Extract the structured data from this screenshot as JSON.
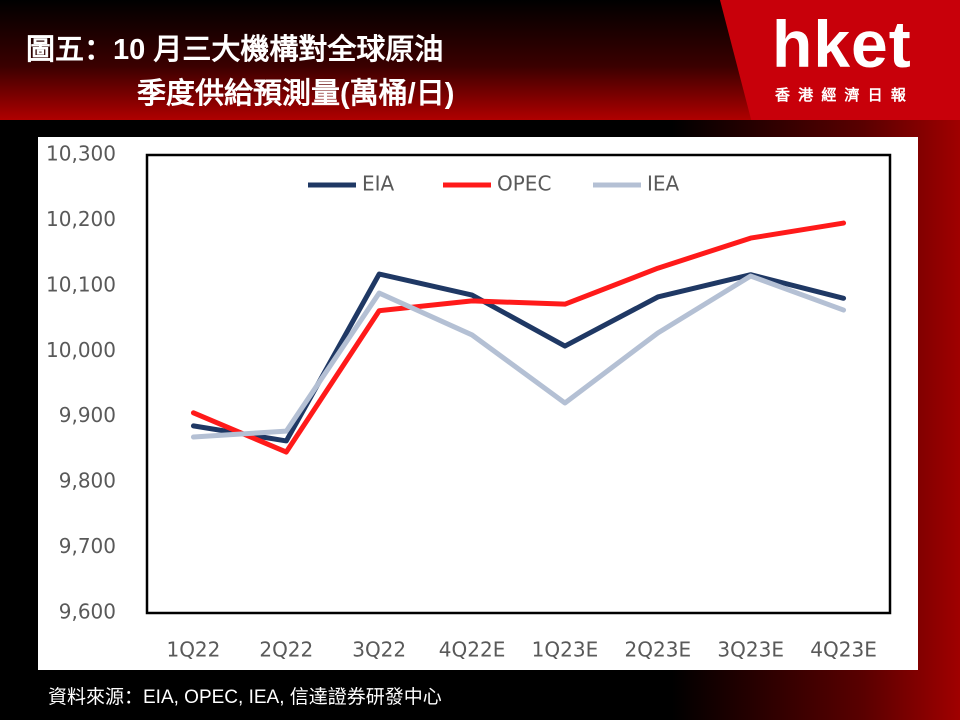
{
  "chart_data": {
    "type": "line",
    "title": "圖五：10 月三大機構對全球原油",
    "subtitle": "季度供給預測量(萬桶/日)",
    "source": "資料來源：EIA, OPEC, IEA, 信達證券研發中心",
    "categories": [
      "1Q22",
      "2Q22",
      "3Q22",
      "4Q22E",
      "1Q23E",
      "2Q23E",
      "3Q23E",
      "4Q23E"
    ],
    "series": [
      {
        "name": "EIA",
        "color": "#1f3864",
        "values": [
          9886,
          9863,
          10118,
          10086,
          10008,
          10083,
          10117,
          10081
        ]
      },
      {
        "name": "OPEC",
        "color": "#ff1a1a",
        "values": [
          9906,
          9846,
          10062,
          10077,
          10072,
          10127,
          10173,
          10196
        ]
      },
      {
        "name": "IEA",
        "color": "#b4c0d4",
        "values": [
          9869,
          9878,
          10089,
          10025,
          9921,
          10028,
          10115,
          10063
        ]
      }
    ],
    "ylim": [
      9600,
      10300
    ],
    "yticks": [
      {
        "value": 9600,
        "label": "9,600"
      },
      {
        "value": 9700,
        "label": "9,700"
      },
      {
        "value": 9800,
        "label": "9,800"
      },
      {
        "value": 9900,
        "label": "9,900"
      },
      {
        "value": 10000,
        "label": "10,000"
      },
      {
        "value": 10100,
        "label": "10,100"
      },
      {
        "value": 10200,
        "label": "10,200"
      },
      {
        "value": 10300,
        "label": "10,300"
      }
    ],
    "grid": false,
    "legend": "top"
  },
  "brand": {
    "logo": "hket",
    "name": "香 港 經 濟 日 報"
  }
}
